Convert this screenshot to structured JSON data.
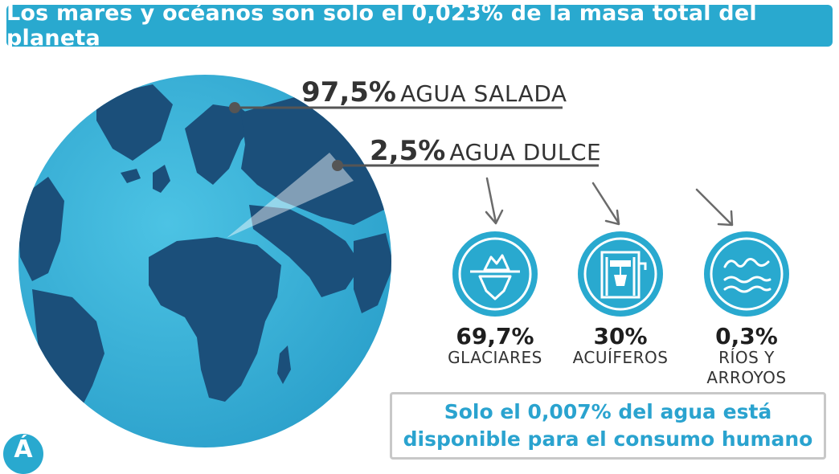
{
  "header": {
    "title": "Los mares y océanos son solo el 0,023% de la masa total del planeta"
  },
  "globe": {
    "salt": {
      "percent": "97,5%",
      "label": "AGUA SALADA"
    },
    "fresh": {
      "percent": "2,5%",
      "label": "AGUA DULCE"
    }
  },
  "breakdown": [
    {
      "percent": "69,7%",
      "label_line1": "GLACIARES",
      "label_line2": "",
      "icon": "iceberg-icon"
    },
    {
      "percent": "30%",
      "label_line1": "ACUÍFEROS",
      "label_line2": "",
      "icon": "well-icon"
    },
    {
      "percent": "0,3%",
      "label_line1": "RÍOS Y",
      "label_line2": "ARROYOS",
      "icon": "waves-icon"
    }
  ],
  "note": {
    "line1": "Solo el 0,007% del agua está",
    "line2": "disponible para el consumo humano"
  },
  "badge": {
    "letter": "Á"
  },
  "colors": {
    "accent": "#29a9cf",
    "ocean": "#3fb4d6",
    "land": "#1b4f7a",
    "text": "#333333"
  }
}
